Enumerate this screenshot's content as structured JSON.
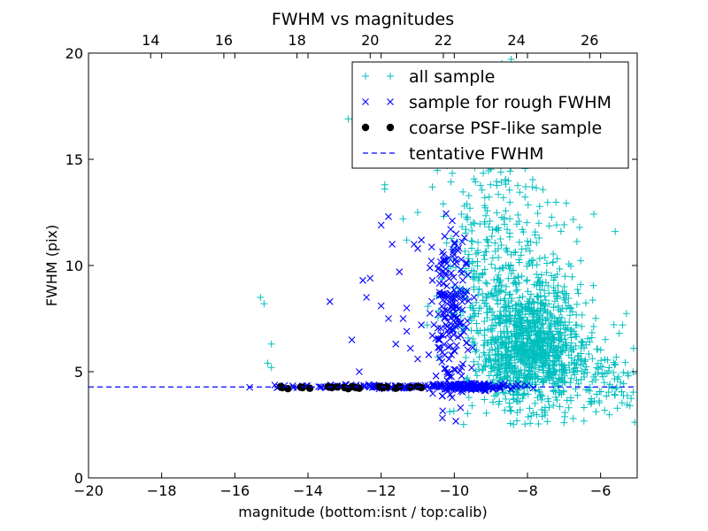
{
  "chart_data": {
    "type": "scatter",
    "title": "FWHM vs magnitudes",
    "xlabel": "magnitude (bottom:isnt / top:calib)",
    "ylabel": "FWHM (pix)",
    "xlim": [
      -20,
      -5
    ],
    "ylim": [
      0,
      20
    ],
    "x_ticks": [
      -20,
      -18,
      -16,
      -14,
      -12,
      -10,
      -8,
      -6
    ],
    "x_tick_labels": [
      "−20",
      "−18",
      "−16",
      "−14",
      "−12",
      "−10",
      "−8",
      "−6"
    ],
    "y_ticks": [
      0,
      5,
      10,
      15,
      20
    ],
    "y_tick_labels": [
      "0",
      "5",
      "10",
      "15",
      "20"
    ],
    "top_axis": {
      "offset": 32.3,
      "ticks": [
        14,
        16,
        18,
        20,
        22,
        24,
        26
      ],
      "tick_labels": [
        "14",
        "16",
        "18",
        "20",
        "22",
        "24",
        "26"
      ]
    },
    "grid": false,
    "legend_position": "top-right",
    "series": [
      {
        "name": "all sample",
        "marker": "plus",
        "color": "#00bfbf",
        "clusters": [
          {
            "count": 1100,
            "x_center": -7.9,
            "x_spread": 0.75,
            "y_center": 6.2,
            "y_spread": 1.5
          },
          {
            "count": 260,
            "x_center": -8.6,
            "x_spread": 0.8,
            "y_center": 10.5,
            "y_spread": 2.6
          },
          {
            "count": 90,
            "x_center": -9.4,
            "x_spread": 0.5,
            "y_center": 9.0,
            "y_spread": 2.5
          },
          {
            "count": 80,
            "x_center": -5.8,
            "x_spread": 0.5,
            "y_center": 4.6,
            "y_spread": 0.8
          }
        ],
        "points": [
          [
            -15.3,
            8.5
          ],
          [
            -15.2,
            8.2
          ],
          [
            -15.0,
            6.3
          ],
          [
            -15.1,
            5.4
          ],
          [
            -15.0,
            5.2
          ],
          [
            -12.9,
            16.9
          ],
          [
            -12.1,
            16.7
          ],
          [
            -12.0,
            14.8
          ],
          [
            -11.9,
            13.8
          ],
          [
            -11.9,
            13.6
          ],
          [
            -11.4,
            12.2
          ],
          [
            -11.3,
            11.2
          ],
          [
            -11.0,
            12.5
          ],
          [
            -10.6,
            13.7
          ],
          [
            -10.3,
            12.9
          ],
          [
            -10.2,
            14.7
          ],
          [
            -10.0,
            15.8
          ],
          [
            -9.8,
            19.2
          ],
          [
            -9.7,
            17.1
          ],
          [
            -9.4,
            18.2
          ],
          [
            -9.0,
            20.3
          ],
          [
            -8.7,
            19.5
          ],
          [
            -8.5,
            18.1
          ],
          [
            -8.3,
            17.6
          ],
          [
            -7.9,
            17.0
          ],
          [
            -7.7,
            19.3
          ],
          [
            -7.5,
            16.5
          ],
          [
            -7.2,
            15.4
          ],
          [
            -6.9,
            14.7
          ],
          [
            -6.6,
            15.0
          ],
          [
            -7.1,
            20.4
          ],
          [
            -5.6,
            11.6
          ],
          [
            -5.4,
            7.2
          ],
          [
            -5.2,
            3.4
          ],
          [
            -5.1,
            6.1
          ],
          [
            -7.0,
            2.6
          ],
          [
            -7.6,
            2.9
          ],
          [
            -6.3,
            3.6
          ],
          [
            -8.2,
            3.2
          ],
          [
            -8.8,
            4.0
          ]
        ]
      },
      {
        "name": "sample for rough FWHM",
        "marker": "x",
        "color": "#0000ff",
        "clusters": [
          {
            "count": 180,
            "x_center": -10.1,
            "x_spread": 0.25,
            "y_center": 7.5,
            "y_spread": 2.0
          },
          {
            "count": 120,
            "x_center": -11.5,
            "x_spread": 1.6,
            "y_center": 4.3,
            "y_spread": 0.05
          },
          {
            "count": 140,
            "x_center": -9.5,
            "x_spread": 0.5,
            "y_center": 4.3,
            "y_spread": 0.08
          }
        ],
        "points": [
          [
            -14.8,
            4.3
          ],
          [
            -14.4,
            4.25
          ],
          [
            -13.4,
            8.3
          ],
          [
            -12.8,
            6.5
          ],
          [
            -12.6,
            5.0
          ],
          [
            -12.5,
            9.3
          ],
          [
            -12.3,
            9.4
          ],
          [
            -12.4,
            8.5
          ],
          [
            -12.0,
            8.1
          ],
          [
            -12.0,
            11.9
          ],
          [
            -11.8,
            12.3
          ],
          [
            -11.7,
            11.0
          ],
          [
            -11.5,
            9.7
          ],
          [
            -11.8,
            7.5
          ],
          [
            -11.6,
            6.3
          ],
          [
            -11.4,
            7.5
          ],
          [
            -11.3,
            6.9
          ],
          [
            -11.3,
            8.0
          ],
          [
            -11.2,
            6.1
          ],
          [
            -11.0,
            5.6
          ],
          [
            -11.0,
            10.8
          ],
          [
            -11.1,
            11.0
          ],
          [
            -10.7,
            5.8
          ],
          [
            -10.6,
            6.7
          ],
          [
            -10.9,
            7.2
          ],
          [
            -10.5,
            4.8
          ],
          [
            -10.4,
            9.6
          ],
          [
            -10.2,
            10.1
          ],
          [
            -10.9,
            11.2
          ],
          [
            -10.6,
            9.3
          ],
          [
            -10.3,
            10.5
          ],
          [
            -10.1,
            11.7
          ],
          [
            -9.9,
            10.7
          ],
          [
            -10.4,
            8.6
          ],
          [
            -9.8,
            4.8
          ]
        ]
      },
      {
        "name": "coarse PSF-like sample",
        "marker": "circle",
        "color": "#000000",
        "points": [
          [
            -14.75,
            4.3
          ],
          [
            -14.7,
            4.25
          ],
          [
            -14.55,
            4.2
          ],
          [
            -14.2,
            4.28
          ],
          [
            -14.15,
            4.25
          ],
          [
            -13.95,
            4.22
          ],
          [
            -13.45,
            4.3
          ],
          [
            -13.35,
            4.25
          ],
          [
            -13.2,
            4.28
          ],
          [
            -13.0,
            4.25
          ],
          [
            -12.9,
            4.2
          ],
          [
            -12.8,
            4.3
          ],
          [
            -12.7,
            4.25
          ],
          [
            -12.6,
            4.22
          ],
          [
            -12.05,
            4.3
          ],
          [
            -11.95,
            4.25
          ],
          [
            -11.85,
            4.28
          ],
          [
            -11.6,
            4.22
          ],
          [
            -11.5,
            4.3
          ],
          [
            -11.2,
            4.26
          ],
          [
            -11.0,
            4.3
          ],
          [
            -10.9,
            4.25
          ]
        ]
      },
      {
        "name": "tentative FWHM",
        "marker": "dashed-line",
        "color": "#0000ff",
        "y": 4.28
      }
    ]
  }
}
